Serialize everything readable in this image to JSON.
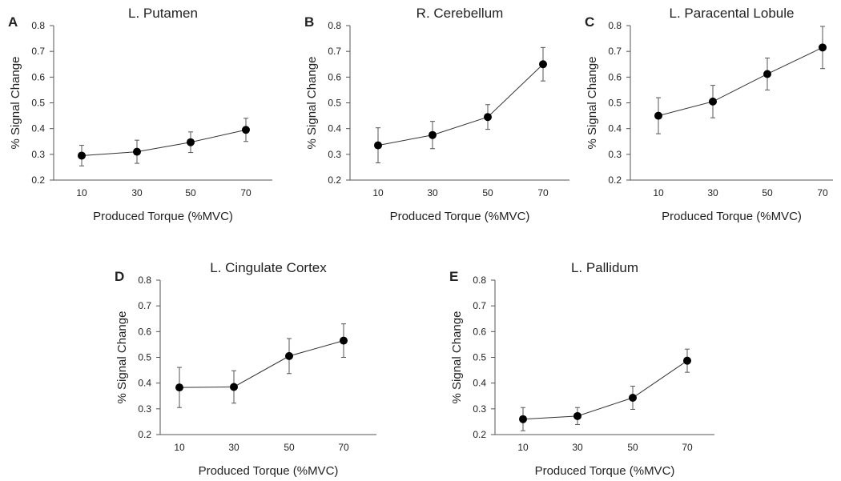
{
  "chart_data": [
    {
      "panel": "A",
      "type": "line",
      "title": "L. Putamen",
      "xlabel": "Produced Torque (%MVC)",
      "ylabel": "% Signal Change",
      "categories": [
        "10",
        "30",
        "50",
        "70"
      ],
      "series": [
        {
          "values": [
            0.295,
            0.31,
            0.347,
            0.395
          ],
          "errors": [
            0.04,
            0.045,
            0.04,
            0.045
          ]
        }
      ],
      "ylim": [
        0.2,
        0.8
      ],
      "yticks": [
        "0.2",
        "0.3",
        "0.4",
        "0.5",
        "0.6",
        "0.7",
        "0.8"
      ],
      "grid": false
    },
    {
      "panel": "B",
      "type": "line",
      "title": "R. Cerebellum",
      "xlabel": "Produced Torque (%MVC)",
      "ylabel": "% Signal Change",
      "categories": [
        "10",
        "30",
        "50",
        "70"
      ],
      "series": [
        {
          "values": [
            0.335,
            0.375,
            0.445,
            0.65
          ],
          "errors": [
            0.068,
            0.053,
            0.048,
            0.065
          ]
        }
      ],
      "ylim": [
        0.2,
        0.8
      ],
      "yticks": [
        "0.2",
        "0.3",
        "0.4",
        "0.5",
        "0.6",
        "0.7",
        "0.8"
      ],
      "grid": false
    },
    {
      "panel": "C",
      "type": "line",
      "title": "L. Paracental Lobule",
      "xlabel": "Produced Torque (%MVC)",
      "ylabel": "% Signal Change",
      "categories": [
        "10",
        "30",
        "50",
        "70"
      ],
      "series": [
        {
          "values": [
            0.45,
            0.505,
            0.612,
            0.715
          ],
          "errors": [
            0.07,
            0.063,
            0.062,
            0.082
          ]
        }
      ],
      "ylim": [
        0.2,
        0.8
      ],
      "yticks": [
        "0.2",
        "0.3",
        "0.4",
        "0.5",
        "0.6",
        "0.7",
        "0.8"
      ],
      "grid": false
    },
    {
      "panel": "D",
      "type": "line",
      "title": "L. Cingulate Cortex",
      "xlabel": "Produced Torque (%MVC)",
      "ylabel": "% Signal Change",
      "categories": [
        "10",
        "30",
        "50",
        "70"
      ],
      "series": [
        {
          "values": [
            0.383,
            0.385,
            0.505,
            0.565
          ],
          "errors": [
            0.078,
            0.063,
            0.068,
            0.065
          ]
        }
      ],
      "ylim": [
        0.2,
        0.8
      ],
      "yticks": [
        "0.2",
        "0.3",
        "0.4",
        "0.5",
        "0.6",
        "0.7",
        "0.8"
      ],
      "grid": false
    },
    {
      "panel": "E",
      "type": "line",
      "title": "L. Pallidum",
      "xlabel": "Produced Torque (%MVC)",
      "ylabel": "% Signal Change",
      "categories": [
        "10",
        "30",
        "50",
        "70"
      ],
      "series": [
        {
          "values": [
            0.26,
            0.272,
            0.343,
            0.487
          ],
          "errors": [
            0.045,
            0.033,
            0.045,
            0.045
          ]
        }
      ],
      "ylim": [
        0.2,
        0.8
      ],
      "yticks": [
        "0.2",
        "0.3",
        "0.4",
        "0.5",
        "0.6",
        "0.7",
        "0.8"
      ],
      "grid": false
    }
  ]
}
